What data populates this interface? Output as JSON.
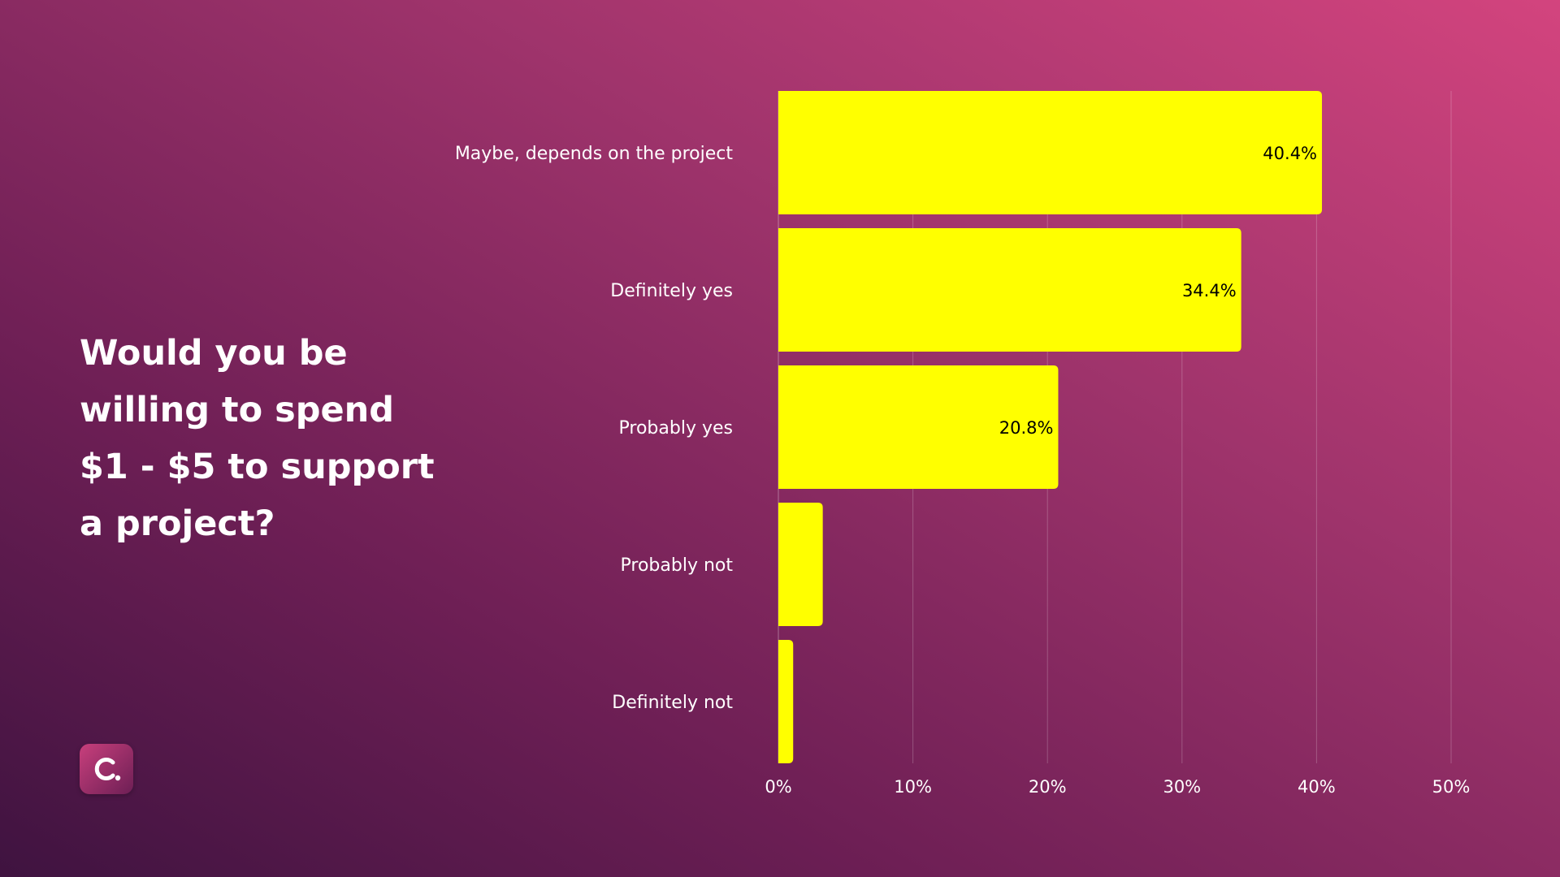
{
  "question": "Would you be willing to spend $1 - $5 to support a project?",
  "brand": {
    "logo": "logo-c-icon"
  },
  "colors": {
    "bar": "#ffff00",
    "label_inside": "#000000",
    "axis_text": "#ffffff",
    "grid": "rgba(255,255,255,0.22)"
  },
  "chart_data": {
    "type": "bar",
    "orientation": "horizontal",
    "categories": [
      "Maybe, depends on the project",
      "Definitely yes",
      "Probably yes",
      "Probably not",
      "Definitely not"
    ],
    "values": [
      40.4,
      34.4,
      20.8,
      3.3,
      1.1
    ],
    "data_labels": [
      "40.4%",
      "34.4%",
      "20.8%",
      "",
      ""
    ],
    "xlim": [
      0,
      50
    ],
    "xticks": [
      0,
      10,
      20,
      30,
      40,
      50
    ],
    "xtick_labels": [
      "0%",
      "10%",
      "20%",
      "30%",
      "40%",
      "50%"
    ],
    "title": "Would you be willing to spend $1 - $5 to support a project?",
    "xlabel": "",
    "ylabel": "",
    "grid": true
  }
}
